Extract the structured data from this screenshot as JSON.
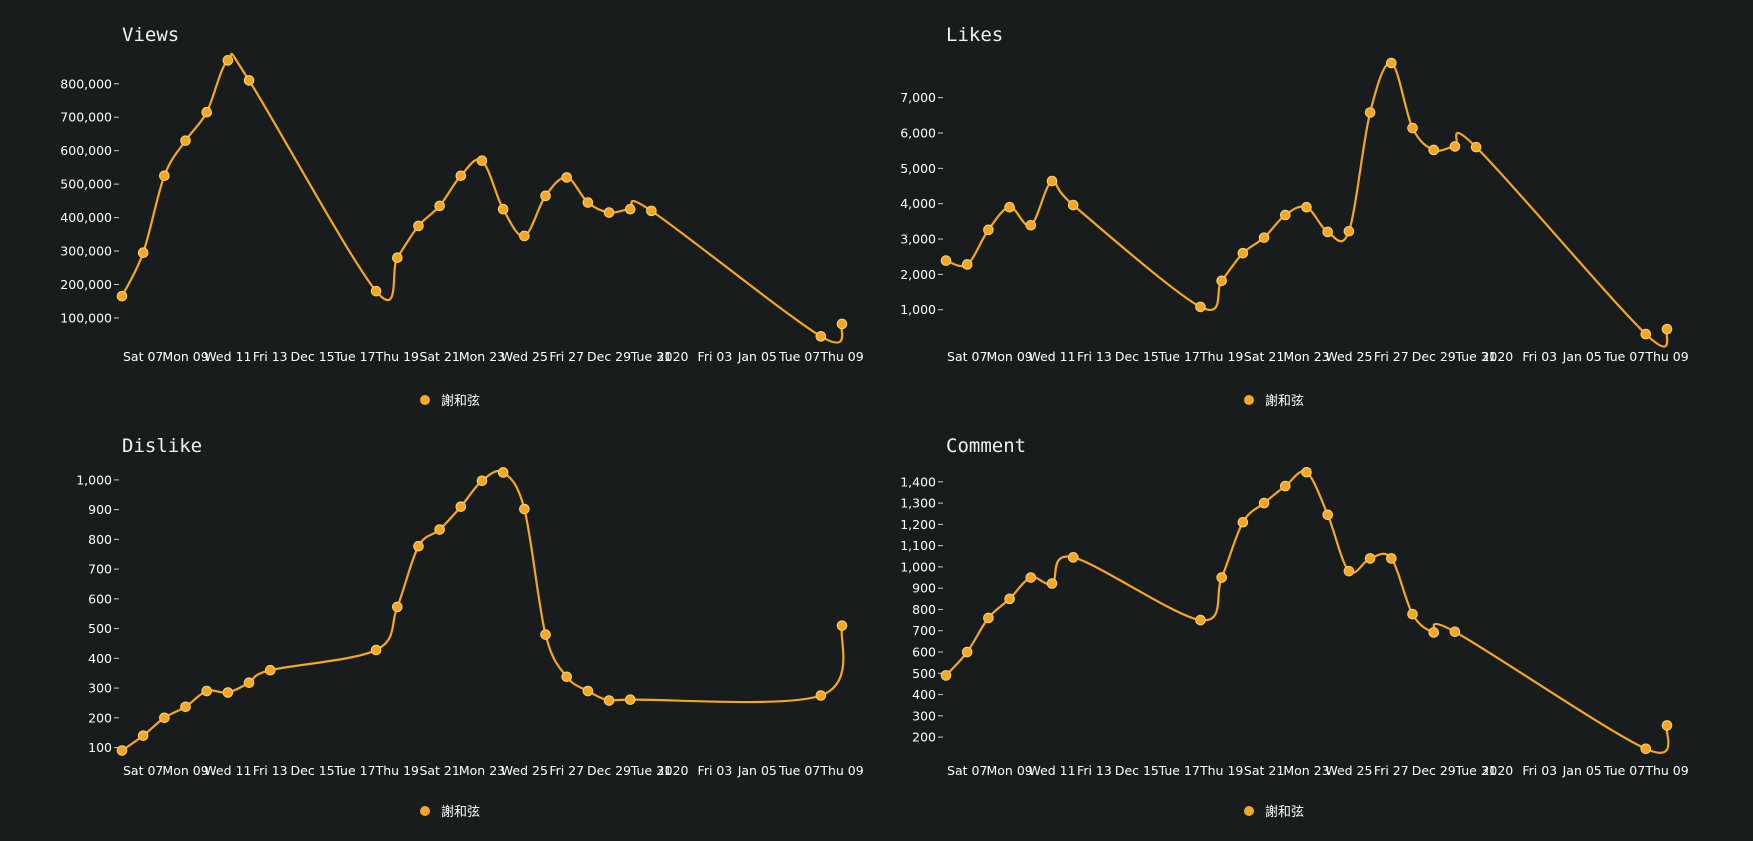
{
  "x_tick_labels": [
    "Sat 07",
    "Mon 09",
    "Wed 11",
    "Fri 13",
    "Dec 15",
    "Tue 17",
    "Thu 19",
    "Sat 21",
    "Mon 23",
    "Wed 25",
    "Fri 27",
    "Dec 29",
    "Tue 31",
    "2020",
    "Fri 03",
    "Jan 05",
    "Tue 07",
    "Thu 09"
  ],
  "colors": {
    "background": "#181c1d",
    "series": "#f5a623"
  },
  "chart_data": [
    {
      "type": "line",
      "title": "Views",
      "x": [
        0,
        1,
        2,
        3,
        4,
        5,
        6,
        12,
        13,
        14,
        15,
        16,
        17,
        18,
        19,
        20,
        21,
        22,
        23,
        24,
        25,
        33,
        34
      ],
      "series": [
        {
          "name": "謝和弦",
          "values": [
            165000,
            295000,
            525000,
            630000,
            715000,
            870000,
            810000,
            180000,
            280000,
            375000,
            435000,
            525000,
            570000,
            425000,
            345000,
            465000,
            520000,
            445000,
            415000,
            425000,
            420000,
            45000,
            82000
          ]
        }
      ],
      "ylim": [
        40000,
        880000
      ],
      "yticks": [
        100000,
        200000,
        300000,
        400000,
        500000,
        600000,
        700000,
        800000
      ],
      "ytick_labels": [
        "100,000",
        "200,000",
        "300,000",
        "400,000",
        "500,000",
        "600,000",
        "700,000",
        "800,000"
      ],
      "legend": "bottom-center"
    },
    {
      "type": "line",
      "title": "Likes",
      "x": [
        0,
        1,
        2,
        3,
        4,
        5,
        6,
        12,
        13,
        14,
        15,
        16,
        17,
        18,
        19,
        20,
        21,
        22,
        23,
        24,
        25,
        33,
        34
      ],
      "series": [
        {
          "name": "謝和弦",
          "values": [
            2390,
            2280,
            3260,
            3900,
            3390,
            4640,
            3960,
            1080,
            1820,
            2600,
            3040,
            3680,
            3900,
            3200,
            3220,
            6580,
            7980,
            6140,
            5520,
            5620,
            5600,
            310,
            450
          ]
        }
      ],
      "ylim": [
        200,
        8150
      ],
      "yticks": [
        1000,
        2000,
        3000,
        4000,
        5000,
        6000,
        7000
      ],
      "ytick_labels": [
        "1,000",
        "2,000",
        "3,000",
        "4,000",
        "5,000",
        "6,000",
        "7,000"
      ],
      "legend": "bottom-center"
    },
    {
      "type": "line",
      "title": "Dislike",
      "x": [
        0,
        1,
        2,
        3,
        4,
        5,
        6,
        7,
        12,
        13,
        14,
        15,
        16,
        17,
        18,
        19,
        20,
        21,
        22,
        23,
        24,
        33,
        34
      ],
      "series": [
        {
          "name": "謝和弦",
          "values": [
            90,
            140,
            200,
            237,
            290,
            285,
            318,
            360,
            428,
            573,
            777,
            833,
            910,
            997,
            1025,
            902,
            480,
            338,
            290,
            258,
            261,
            275,
            510
          ]
        }
      ],
      "ylim": [
        85,
        1040
      ],
      "yticks": [
        100,
        200,
        300,
        400,
        500,
        600,
        700,
        800,
        900,
        1000
      ],
      "ytick_labels": [
        "100",
        "200",
        "300",
        "400",
        "500",
        "600",
        "700",
        "800",
        "900",
        "1,000"
      ],
      "legend": "bottom-center"
    },
    {
      "type": "line",
      "title": "Comment",
      "x": [
        0,
        1,
        2,
        3,
        4,
        5,
        6,
        12,
        13,
        14,
        15,
        16,
        17,
        18,
        19,
        20,
        21,
        22,
        23,
        24,
        33,
        34
      ],
      "series": [
        {
          "name": "謝和弦",
          "values": [
            490,
            600,
            760,
            850,
            950,
            922,
            1045,
            750,
            950,
            1210,
            1300,
            1380,
            1445,
            1245,
            980,
            1040,
            1040,
            778,
            692,
            695,
            145,
            255
          ]
        }
      ],
      "ylim": [
        130,
        1465
      ],
      "yticks": [
        200,
        300,
        400,
        500,
        600,
        700,
        800,
        900,
        1000,
        1100,
        1200,
        1300,
        1400
      ],
      "ytick_labels": [
        "200",
        "300",
        "400",
        "500",
        "600",
        "700",
        "800",
        "900",
        "1,000",
        "1,100",
        "1,200",
        "1,300",
        "1,400"
      ],
      "legend": "bottom-center"
    }
  ]
}
